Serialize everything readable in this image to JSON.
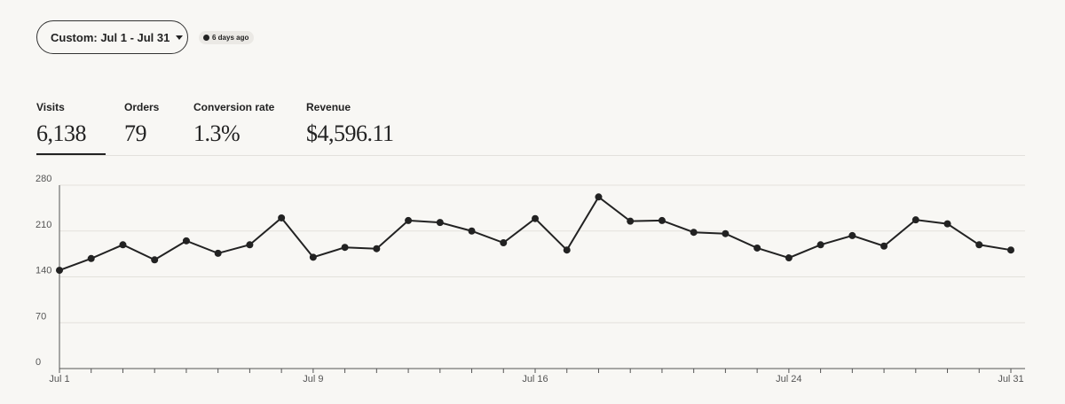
{
  "toolbar": {
    "date_range": "Custom: Jul 1 - Jul 31",
    "updated": "6 days ago"
  },
  "metrics": [
    {
      "label": "Visits",
      "value": "6,138"
    },
    {
      "label": "Orders",
      "value": "79"
    },
    {
      "label": "Conversion rate",
      "value": "1.3%"
    },
    {
      "label": "Revenue",
      "value": "$4,596.11"
    }
  ],
  "chart_data": {
    "type": "line",
    "categories": [
      "Jul 1",
      null,
      null,
      null,
      null,
      null,
      null,
      null,
      "Jul 9",
      null,
      null,
      null,
      null,
      null,
      null,
      "Jul 16",
      null,
      null,
      null,
      null,
      null,
      null,
      null,
      "Jul 24",
      null,
      null,
      null,
      null,
      null,
      null,
      "Jul 31"
    ],
    "series": [
      {
        "name": "Visits",
        "color": "#222222",
        "values": [
          150,
          168,
          189,
          166,
          195,
          176,
          189,
          230,
          170,
          185,
          183,
          226,
          223,
          210,
          192,
          229,
          181,
          262,
          225,
          226,
          208,
          206,
          184,
          169,
          189,
          203,
          187,
          227,
          221,
          189,
          181
        ]
      }
    ],
    "ylim": [
      0,
      280
    ],
    "yticks": [
      0,
      70,
      140,
      210,
      280
    ],
    "grid": true
  }
}
